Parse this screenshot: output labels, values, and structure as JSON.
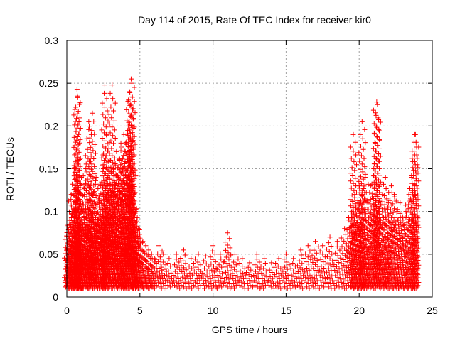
{
  "chart_data": {
    "type": "scatter",
    "title": "Day 114 of 2015, Rate Of TEC Index for receiver kir0",
    "xlabel": "GPS time / hours",
    "ylabel": "ROTI / TECUs",
    "xlim": [
      0,
      25
    ],
    "ylim": [
      0,
      0.3
    ],
    "xticks": [
      0,
      5,
      10,
      15,
      20,
      25
    ],
    "xtick_labels": [
      "0",
      "5",
      "10",
      "15",
      "20",
      "25"
    ],
    "yticks": [
      0,
      0.05,
      0.1,
      0.15,
      0.2,
      0.25,
      0.3
    ],
    "ytick_labels": [
      "0",
      "0.05",
      "0.1",
      "0.15",
      "0.2",
      "0.25",
      "0.3"
    ],
    "grid": true,
    "marker": "+",
    "color": "#ff0000",
    "series": [
      {
        "name": "ROTI",
        "x": [
          0.05,
          0.1,
          0.15,
          0.2,
          0.3,
          0.4,
          0.5,
          0.6,
          0.7,
          0.75,
          0.8,
          0.9,
          1.0,
          1.1,
          1.2,
          1.3,
          1.4,
          1.5,
          1.6,
          1.7,
          1.8,
          1.9,
          2.0,
          2.1,
          2.2,
          2.3,
          2.4,
          2.5,
          2.6,
          2.7,
          2.8,
          2.9,
          3.0,
          3.1,
          3.2,
          3.3,
          3.4,
          3.5,
          3.6,
          3.7,
          3.8,
          3.9,
          4.0,
          4.1,
          4.2,
          4.3,
          4.4,
          4.5,
          4.6,
          4.7,
          4.8,
          4.9,
          5.0,
          5.2,
          5.4,
          5.6,
          5.8,
          6.0,
          6.3,
          6.6,
          7.0,
          7.5,
          8.0,
          8.5,
          9.0,
          9.5,
          10.0,
          10.5,
          11.0,
          11.5,
          12.0,
          12.5,
          13.0,
          13.5,
          14.0,
          14.5,
          15.0,
          15.5,
          16.0,
          16.5,
          17.0,
          17.5,
          18.0,
          18.5,
          19.0,
          19.3,
          19.5,
          19.7,
          19.9,
          20.0,
          20.2,
          20.4,
          20.6,
          20.8,
          21.0,
          21.2,
          21.4,
          21.6,
          21.8,
          22.0,
          22.2,
          22.4,
          22.6,
          22.8,
          23.0,
          23.2,
          23.4,
          23.6,
          23.8,
          3.1,
          2.6,
          0.7,
          0.72,
          4.4,
          4.45,
          4.3,
          1.5,
          1.75,
          20.2,
          21.2,
          21.25,
          23.8,
          23.85,
          19.6,
          2.7,
          0.3,
          0.6,
          1.0,
          1.9,
          3.3,
          3.7,
          4.0,
          4.6,
          20.5,
          21.9,
          22.7,
          23.3
        ],
        "values": [
          0.082,
          0.071,
          0.065,
          0.09,
          0.12,
          0.1,
          0.15,
          0.11,
          0.13,
          0.16,
          0.12,
          0.09,
          0.14,
          0.1,
          0.12,
          0.15,
          0.09,
          0.11,
          0.13,
          0.08,
          0.12,
          0.1,
          0.14,
          0.09,
          0.11,
          0.13,
          0.12,
          0.15,
          0.1,
          0.12,
          0.14,
          0.11,
          0.16,
          0.13,
          0.15,
          0.12,
          0.17,
          0.14,
          0.16,
          0.18,
          0.15,
          0.19,
          0.17,
          0.14,
          0.2,
          0.16,
          0.13,
          0.15,
          0.12,
          0.1,
          0.09,
          0.08,
          0.07,
          0.065,
          0.06,
          0.055,
          0.05,
          0.045,
          0.06,
          0.05,
          0.045,
          0.05,
          0.055,
          0.045,
          0.05,
          0.048,
          0.06,
          0.05,
          0.075,
          0.05,
          0.045,
          0.04,
          0.05,
          0.045,
          0.04,
          0.045,
          0.05,
          0.045,
          0.055,
          0.06,
          0.065,
          0.06,
          0.07,
          0.065,
          0.08,
          0.09,
          0.1,
          0.12,
          0.11,
          0.13,
          0.12,
          0.14,
          0.11,
          0.13,
          0.15,
          0.12,
          0.1,
          0.12,
          0.14,
          0.11,
          0.13,
          0.12,
          0.1,
          0.11,
          0.09,
          0.1,
          0.12,
          0.14,
          0.12,
          0.248,
          0.248,
          0.243,
          0.235,
          0.255,
          0.25,
          0.24,
          0.205,
          0.215,
          0.205,
          0.228,
          0.225,
          0.19,
          0.19,
          0.19,
          0.19,
          0.03,
          0.035,
          0.04,
          0.03,
          0.035,
          0.04,
          0.03,
          0.035,
          0.03,
          0.04,
          0.035,
          0.03
        ]
      }
    ]
  }
}
